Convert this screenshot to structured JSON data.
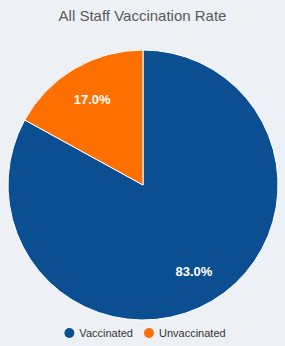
{
  "chart_data": {
    "type": "pie",
    "title": "All Staff Vaccination Rate",
    "categories": [
      "Vaccinated",
      "Unvaccinated"
    ],
    "values": [
      83.0,
      17.0
    ],
    "value_labels": [
      "83.0%",
      "17.0%"
    ],
    "colors": [
      "#0b4f92",
      "#ff7000"
    ],
    "data_labels": true,
    "legend": "bottom"
  }
}
